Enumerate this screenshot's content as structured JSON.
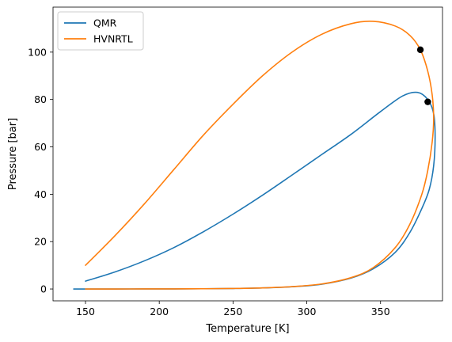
{
  "chart_data": {
    "type": "line",
    "title": "",
    "xlabel": "Temperature [K]",
    "ylabel": "Pressure [bar]",
    "xlim": [
      128,
      392
    ],
    "ylim": [
      -5,
      119
    ],
    "xticks": [
      150,
      200,
      250,
      300,
      350
    ],
    "yticks": [
      0,
      20,
      40,
      60,
      80,
      100
    ],
    "grid": false,
    "legend_position": "top-left",
    "series": [
      {
        "name": "QMR",
        "color": "#1f77b4",
        "x": [
          150,
          170,
          190,
          210,
          230,
          250,
          270,
          290,
          310,
          330,
          350,
          365,
          375,
          382,
          386,
          387,
          386,
          383,
          378,
          370,
          360,
          345,
          330,
          310,
          290,
          270,
          250,
          230,
          210,
          190,
          170,
          150,
          142
        ],
        "y": [
          3.3,
          7.2,
          11.9,
          17.5,
          24.2,
          31.6,
          39.6,
          48.1,
          56.7,
          65.3,
          74.9,
          81.5,
          83.0,
          80.0,
          74.0,
          64.0,
          52.0,
          42.0,
          34.0,
          24.0,
          15.5,
          8.5,
          4.6,
          2.0,
          0.95,
          0.44,
          0.21,
          0.1,
          0.045,
          0.02,
          0.008,
          0.003,
          0.0
        ]
      },
      {
        "name": "HVNRTL",
        "color": "#ff7f0e",
        "x": [
          150,
          170,
          190,
          210,
          230,
          250,
          270,
          290,
          310,
          330,
          345,
          360,
          370,
          377,
          382,
          385,
          386,
          385,
          382,
          378,
          370,
          360,
          345,
          330,
          310,
          290,
          270,
          250,
          230,
          210,
          190,
          170,
          150
        ],
        "y": [
          10.0,
          22.5,
          36.0,
          50.5,
          65.0,
          78.0,
          90.0,
          100.0,
          107.5,
          112.0,
          113.0,
          111.0,
          107.0,
          101.0,
          92.0,
          82.0,
          72.0,
          62.0,
          50.0,
          40.0,
          27.5,
          17.5,
          9.0,
          4.8,
          2.1,
          1.0,
          0.45,
          0.21,
          0.1,
          0.046,
          0.02,
          0.008,
          0.003
        ]
      }
    ],
    "points": [
      {
        "x": 377,
        "y": 101
      },
      {
        "x": 382,
        "y": 79
      }
    ],
    "point_color": "#000000"
  }
}
